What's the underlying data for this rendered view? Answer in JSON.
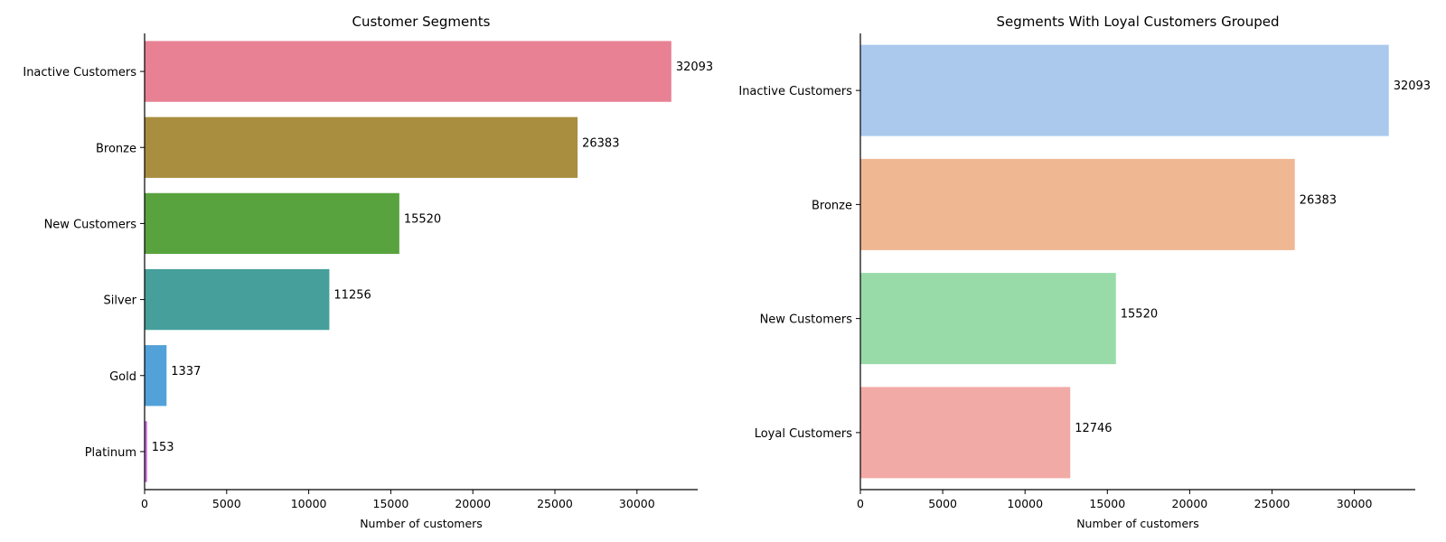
{
  "chart_data": [
    {
      "type": "bar",
      "orientation": "horizontal",
      "title": "Customer Segments",
      "xlabel": "Number of customers",
      "ylabel": "",
      "categories": [
        "Inactive Customers",
        "Bronze",
        "New Customers",
        "Silver",
        "Gold",
        "Platinum"
      ],
      "values": [
        32093,
        26383,
        15520,
        11256,
        1337,
        153
      ],
      "data_labels": [
        "32093",
        "26383",
        "15520",
        "11256",
        "1337",
        "153"
      ],
      "colors": [
        "#e88194",
        "#a98e40",
        "#58a33e",
        "#469f9b",
        "#52a1d9",
        "#c86ee0"
      ],
      "xlim": [
        0,
        33700
      ],
      "xticks": [
        0,
        5000,
        10000,
        15000,
        20000,
        25000,
        30000
      ],
      "xtick_labels": [
        "0",
        "5000",
        "10000",
        "15000",
        "20000",
        "25000",
        "30000"
      ],
      "grid": false
    },
    {
      "type": "bar",
      "orientation": "horizontal",
      "title": "Segments With Loyal Customers Grouped",
      "xlabel": "Number of customers",
      "ylabel": "",
      "categories": [
        "Inactive Customers",
        "Bronze",
        "New Customers",
        "Loyal Customers"
      ],
      "values": [
        32093,
        26383,
        15520,
        12746
      ],
      "data_labels": [
        "32093",
        "26383",
        "15520",
        "12746"
      ],
      "colors": [
        "#abc9ed",
        "#f0b793",
        "#98dba8",
        "#f2aaa7"
      ],
      "xlim": [
        0,
        33700
      ],
      "xticks": [
        0,
        5000,
        10000,
        15000,
        20000,
        25000,
        30000
      ],
      "xtick_labels": [
        "0",
        "5000",
        "10000",
        "15000",
        "20000",
        "25000",
        "30000"
      ],
      "grid": false
    }
  ]
}
